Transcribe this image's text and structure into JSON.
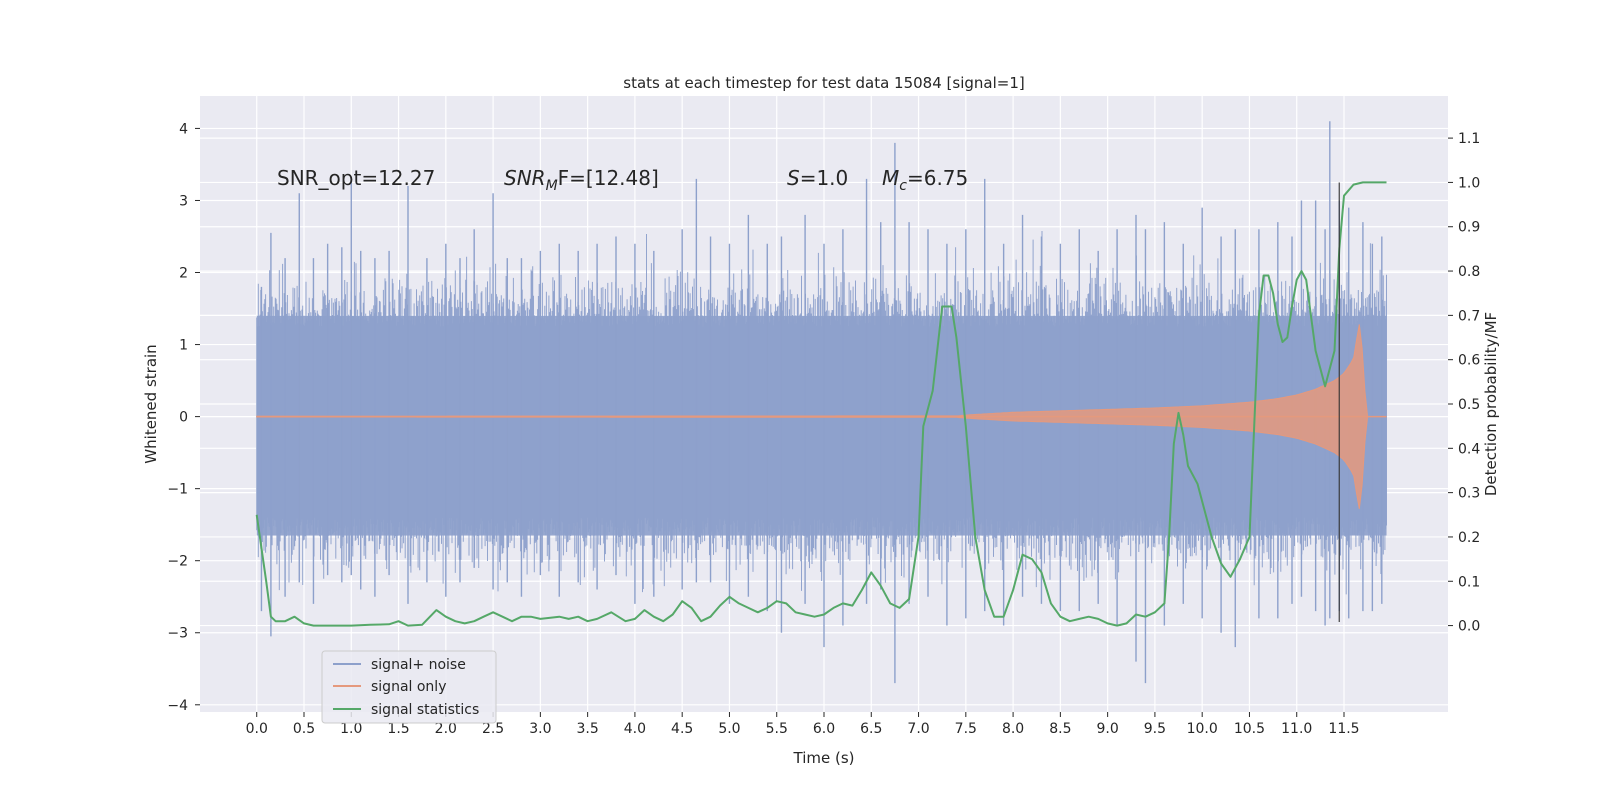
{
  "chart_data": {
    "type": "line",
    "title": "stats at each timestep for test data 15084 [signal=1]",
    "xlabel": "Time (s)",
    "ylabel_left": "Whitened strain",
    "ylabel_right": "Detection probability/MF",
    "xlim": [
      -0.6,
      12.6
    ],
    "ylim_left": [
      -4.1,
      4.45
    ],
    "ylim_right": [
      -0.195,
      1.195
    ],
    "x_ticks": [
      "0.0",
      "0.5",
      "1.0",
      "1.5",
      "2.0",
      "2.5",
      "3.0",
      "3.5",
      "4.0",
      "4.5",
      "5.0",
      "5.5",
      "6.0",
      "6.5",
      "7.0",
      "7.5",
      "8.0",
      "8.5",
      "9.0",
      "9.5",
      "10.0",
      "10.5",
      "11.0",
      "11.5"
    ],
    "y_ticks_left": [
      "4",
      "3",
      "2",
      "1",
      "0",
      "−1",
      "−2",
      "−3",
      "−4"
    ],
    "y_ticks_right": [
      "1.1",
      "1.0",
      "0.9",
      "0.8",
      "0.7",
      "0.6",
      "0.5",
      "0.4",
      "0.3",
      "0.2",
      "0.1",
      "0.0"
    ],
    "annotations": {
      "snr_opt": "SNR_opt=12.27",
      "snr_mf_base": "SNR",
      "snr_mf_sub": "M",
      "snr_mf_rest": "F=[12.48]",
      "s_label": "S",
      "s_value": "=1.0",
      "mc_label": "M",
      "mc_sub": "c",
      "mc_value": "=6.75"
    },
    "vline_x": 11.45,
    "grid": true,
    "legend_position": "lower-left",
    "series": [
      {
        "name": "signal+ noise",
        "axis": "left",
        "color": "#8da0cb",
        "type": "noise_band",
        "x_range": [
          0.0,
          11.95
        ],
        "band": [
          -1.65,
          1.4
        ],
        "peak_samples": [
          [
            0.05,
            1.8,
            -2.7
          ],
          [
            0.15,
            2.55,
            -3.05
          ],
          [
            0.3,
            2.2,
            -2.5
          ],
          [
            0.45,
            3.1,
            -2.3
          ],
          [
            0.6,
            2.2,
            -2.6
          ],
          [
            0.75,
            2.4,
            -2.2
          ],
          [
            0.9,
            2.35,
            -2.3
          ],
          [
            1.0,
            3.3,
            -2.2
          ],
          [
            1.1,
            2.3,
            -2.4
          ],
          [
            1.25,
            2.2,
            -2.5
          ],
          [
            1.4,
            2.3,
            -2.2
          ],
          [
            1.6,
            3.2,
            -2.6
          ],
          [
            1.8,
            2.2,
            -2.3
          ],
          [
            2.0,
            2.4,
            -2.5
          ],
          [
            2.15,
            2.2,
            -2.3
          ],
          [
            2.3,
            2.6,
            -2.1
          ],
          [
            2.5,
            3.1,
            -2.4
          ],
          [
            2.65,
            2.2,
            -2.3
          ],
          [
            2.8,
            2.2,
            -2.5
          ],
          [
            3.0,
            2.3,
            -2.2
          ],
          [
            3.2,
            2.4,
            -2.5
          ],
          [
            3.4,
            2.3,
            -2.3
          ],
          [
            3.6,
            2.4,
            -2.4
          ],
          [
            3.8,
            2.5,
            -2.2
          ],
          [
            4.0,
            2.4,
            -2.6
          ],
          [
            4.2,
            2.3,
            -2.5
          ],
          [
            4.5,
            2.6,
            -2.4
          ],
          [
            4.65,
            3.3,
            -2.3
          ],
          [
            4.8,
            2.5,
            -2.3
          ],
          [
            5.0,
            2.4,
            -2.6
          ],
          [
            5.2,
            2.8,
            -2.5
          ],
          [
            5.4,
            2.4,
            -2.7
          ],
          [
            5.55,
            2.5,
            -3.0
          ],
          [
            5.8,
            2.8,
            -2.6
          ],
          [
            6.0,
            2.4,
            -3.2
          ],
          [
            6.2,
            2.6,
            -2.9
          ],
          [
            6.45,
            3.3,
            -2.6
          ],
          [
            6.6,
            2.7,
            -2.4
          ],
          [
            6.75,
            3.8,
            -3.7
          ],
          [
            6.9,
            2.7,
            -2.6
          ],
          [
            7.1,
            2.6,
            -2.5
          ],
          [
            7.3,
            2.4,
            -2.9
          ],
          [
            7.5,
            2.6,
            -2.8
          ],
          [
            7.7,
            3.3,
            -2.7
          ],
          [
            7.9,
            2.4,
            -2.9
          ],
          [
            8.1,
            2.8,
            -2.5
          ],
          [
            8.3,
            2.5,
            -2.6
          ],
          [
            8.5,
            2.4,
            -2.7
          ],
          [
            8.7,
            2.6,
            -2.7
          ],
          [
            8.9,
            2.3,
            -2.6
          ],
          [
            9.1,
            2.6,
            -2.9
          ],
          [
            9.3,
            2.8,
            -3.4
          ],
          [
            9.4,
            2.6,
            -3.7
          ],
          [
            9.6,
            2.7,
            -2.9
          ],
          [
            9.8,
            2.4,
            -2.6
          ],
          [
            10.0,
            2.9,
            -2.8
          ],
          [
            10.2,
            2.5,
            -3.0
          ],
          [
            10.35,
            2.6,
            -3.2
          ],
          [
            10.6,
            2.6,
            -2.8
          ],
          [
            10.8,
            2.7,
            -2.8
          ],
          [
            10.95,
            2.5,
            -2.6
          ],
          [
            11.05,
            3.0,
            -2.5
          ],
          [
            11.2,
            3.0,
            -2.7
          ],
          [
            11.3,
            2.6,
            -2.9
          ],
          [
            11.35,
            4.1,
            -2.8
          ],
          [
            11.45,
            3.0,
            -2.7
          ],
          [
            11.55,
            2.9,
            -2.8
          ],
          [
            11.7,
            2.7,
            -2.7
          ],
          [
            11.8,
            2.4,
            -2.7
          ],
          [
            11.9,
            2.5,
            -2.6
          ]
        ]
      },
      {
        "name": "signal only",
        "axis": "left",
        "color": "#e5997d",
        "type": "chirp",
        "x_range": [
          0.0,
          11.75
        ],
        "envelope": [
          [
            0.0,
            0.005
          ],
          [
            7.4,
            0.01
          ],
          [
            7.6,
            0.03
          ],
          [
            8.0,
            0.06
          ],
          [
            8.5,
            0.08
          ],
          [
            9.0,
            0.1
          ],
          [
            9.5,
            0.12
          ],
          [
            10.0,
            0.15
          ],
          [
            10.5,
            0.2
          ],
          [
            10.8,
            0.25
          ],
          [
            11.0,
            0.3
          ],
          [
            11.2,
            0.38
          ],
          [
            11.4,
            0.5
          ],
          [
            11.5,
            0.6
          ],
          [
            11.6,
            0.8
          ],
          [
            11.65,
            1.2
          ],
          [
            11.68,
            1.4
          ],
          [
            11.7,
            0.6
          ],
          [
            11.75,
            0.0
          ]
        ]
      },
      {
        "name": "signal statistics",
        "axis": "right",
        "color": "#55a868",
        "type": "line",
        "points": [
          [
            0.0,
            0.25
          ],
          [
            0.1,
            0.1
          ],
          [
            0.15,
            0.02
          ],
          [
            0.2,
            0.01
          ],
          [
            0.3,
            0.01
          ],
          [
            0.4,
            0.02
          ],
          [
            0.5,
            0.005
          ],
          [
            0.6,
            0.0
          ],
          [
            0.8,
            0.0
          ],
          [
            1.0,
            0.0
          ],
          [
            1.2,
            0.002
          ],
          [
            1.4,
            0.003
          ],
          [
            1.5,
            0.01
          ],
          [
            1.6,
            0.0
          ],
          [
            1.75,
            0.002
          ],
          [
            1.9,
            0.035
          ],
          [
            2.0,
            0.02
          ],
          [
            2.1,
            0.01
          ],
          [
            2.2,
            0.005
          ],
          [
            2.3,
            0.01
          ],
          [
            2.4,
            0.02
          ],
          [
            2.5,
            0.03
          ],
          [
            2.6,
            0.02
          ],
          [
            2.7,
            0.01
          ],
          [
            2.8,
            0.02
          ],
          [
            2.9,
            0.02
          ],
          [
            3.0,
            0.015
          ],
          [
            3.2,
            0.02
          ],
          [
            3.3,
            0.015
          ],
          [
            3.4,
            0.02
          ],
          [
            3.5,
            0.01
          ],
          [
            3.6,
            0.015
          ],
          [
            3.75,
            0.03
          ],
          [
            3.9,
            0.01
          ],
          [
            4.0,
            0.015
          ],
          [
            4.1,
            0.035
          ],
          [
            4.2,
            0.02
          ],
          [
            4.3,
            0.01
          ],
          [
            4.4,
            0.025
          ],
          [
            4.5,
            0.055
          ],
          [
            4.6,
            0.04
          ],
          [
            4.7,
            0.01
          ],
          [
            4.8,
            0.02
          ],
          [
            4.9,
            0.045
          ],
          [
            5.0,
            0.065
          ],
          [
            5.1,
            0.05
          ],
          [
            5.2,
            0.04
          ],
          [
            5.3,
            0.03
          ],
          [
            5.4,
            0.04
          ],
          [
            5.5,
            0.055
          ],
          [
            5.6,
            0.05
          ],
          [
            5.7,
            0.03
          ],
          [
            5.8,
            0.025
          ],
          [
            5.9,
            0.02
          ],
          [
            6.0,
            0.025
          ],
          [
            6.1,
            0.04
          ],
          [
            6.2,
            0.05
          ],
          [
            6.3,
            0.045
          ],
          [
            6.4,
            0.08
          ],
          [
            6.5,
            0.12
          ],
          [
            6.6,
            0.09
          ],
          [
            6.7,
            0.05
          ],
          [
            6.8,
            0.04
          ],
          [
            6.9,
            0.06
          ],
          [
            7.0,
            0.2
          ],
          [
            7.05,
            0.45
          ],
          [
            7.15,
            0.53
          ],
          [
            7.25,
            0.72
          ],
          [
            7.35,
            0.72
          ],
          [
            7.4,
            0.65
          ],
          [
            7.5,
            0.45
          ],
          [
            7.6,
            0.2
          ],
          [
            7.7,
            0.08
          ],
          [
            7.8,
            0.02
          ],
          [
            7.9,
            0.02
          ],
          [
            8.0,
            0.08
          ],
          [
            8.1,
            0.16
          ],
          [
            8.2,
            0.15
          ],
          [
            8.3,
            0.12
          ],
          [
            8.4,
            0.05
          ],
          [
            8.5,
            0.02
          ],
          [
            8.6,
            0.01
          ],
          [
            8.7,
            0.015
          ],
          [
            8.8,
            0.02
          ],
          [
            8.9,
            0.015
          ],
          [
            9.0,
            0.005
          ],
          [
            9.1,
            0.0
          ],
          [
            9.2,
            0.005
          ],
          [
            9.3,
            0.025
          ],
          [
            9.4,
            0.02
          ],
          [
            9.5,
            0.03
          ],
          [
            9.6,
            0.05
          ],
          [
            9.65,
            0.2
          ],
          [
            9.7,
            0.41
          ],
          [
            9.75,
            0.48
          ],
          [
            9.8,
            0.43
          ],
          [
            9.85,
            0.36
          ],
          [
            9.95,
            0.32
          ],
          [
            10.0,
            0.28
          ],
          [
            10.1,
            0.2
          ],
          [
            10.2,
            0.14
          ],
          [
            10.3,
            0.11
          ],
          [
            10.4,
            0.15
          ],
          [
            10.5,
            0.2
          ],
          [
            10.55,
            0.45
          ],
          [
            10.6,
            0.7
          ],
          [
            10.65,
            0.79
          ],
          [
            10.7,
            0.79
          ],
          [
            10.75,
            0.75
          ],
          [
            10.8,
            0.68
          ],
          [
            10.85,
            0.64
          ],
          [
            10.9,
            0.65
          ],
          [
            10.95,
            0.72
          ],
          [
            11.0,
            0.78
          ],
          [
            11.05,
            0.8
          ],
          [
            11.1,
            0.78
          ],
          [
            11.15,
            0.7
          ],
          [
            11.2,
            0.62
          ],
          [
            11.3,
            0.54
          ],
          [
            11.4,
            0.62
          ],
          [
            11.45,
            0.85
          ],
          [
            11.5,
            0.97
          ],
          [
            11.6,
            0.995
          ],
          [
            11.7,
            1.0
          ],
          [
            11.8,
            1.0
          ],
          [
            11.95,
            1.0
          ]
        ]
      }
    ]
  }
}
